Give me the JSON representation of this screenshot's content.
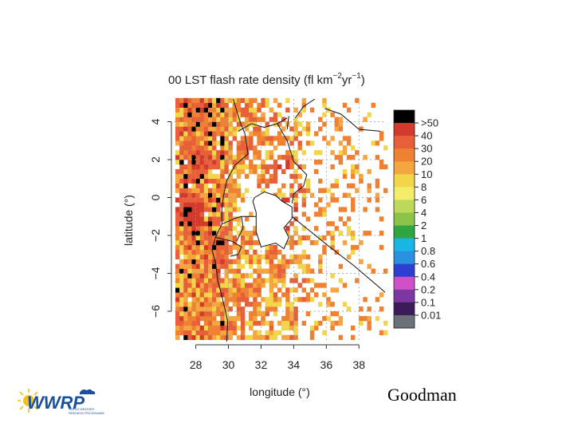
{
  "slide": {
    "author": "Goodman"
  },
  "logo": {
    "name": "WWRP",
    "tagline_1": "WORLD WEATHER",
    "tagline_2": "RESEARCH PROGRAMME"
  },
  "chart_data": {
    "type": "heatmap",
    "title_main": "00 LST flash rate density (fl km",
    "title_sup1": "−2",
    "title_mid": "yr",
    "title_sup2": "−1",
    "title_end": ")",
    "xlabel": "longitude (°)",
    "ylabel": "latitude (°)",
    "xlim": [
      26.7,
      39.6
    ],
    "ylim": [
      -7.6,
      5.2
    ],
    "xticks": [
      28,
      30,
      32,
      34,
      36,
      38
    ],
    "yticks": [
      4,
      2,
      0,
      -2,
      -4,
      -6
    ],
    "xtick_labels": [
      "28",
      "30",
      "32",
      "34",
      "36",
      "38"
    ],
    "ytick_labels": [
      "4",
      "2",
      "0",
      "−2",
      "−4",
      "−6"
    ],
    "grid": "dashed gray at ticks",
    "legend": {
      "placement": "right",
      "labels": [
        ">50",
        "40",
        "30",
        "20",
        "10",
        "8",
        "6",
        "4",
        "2",
        "1",
        "0.8",
        "0.6",
        "0.4",
        "0.2",
        "0.1",
        "0.01"
      ],
      "colors": [
        "#000000",
        "#d33a2c",
        "#e8603a",
        "#ef8232",
        "#f5a640",
        "#f2d64a",
        "#f3ee6a",
        "#bcd95a",
        "#8cc44a",
        "#2fa640",
        "#19b6e6",
        "#2a90e0",
        "#2c3fd0",
        "#d050c8",
        "#7a38a0",
        "#3c1c58",
        "#6a7278"
      ]
    },
    "grid_spec": {
      "cell_deg": 0.25,
      "lon_start": 26.75,
      "lat_start": -7.5,
      "ncol": 52,
      "nrow": 51,
      "cell_colors": [
        "#000000",
        "#d33a2c",
        "#e8603a",
        "#ef8232",
        "#f5a640",
        "#f2d64a",
        "#bcd95a",
        "#8cc44a"
      ]
    },
    "hotspots": [
      {
        "lon": 27.6,
        "lat": -0.8,
        "level": 7
      },
      {
        "lon": 28.0,
        "lat": 1.8,
        "level": 6
      },
      {
        "lon": 28.0,
        "lat": 4.3,
        "level": 5
      },
      {
        "lon": 31.2,
        "lat": 2.6,
        "level": 5
      },
      {
        "lon": 33.1,
        "lat": 1.5,
        "level": 6
      },
      {
        "lon": 33.3,
        "lat": -0.9,
        "level": 7
      },
      {
        "lon": 32.6,
        "lat": -1.4,
        "level": 5
      },
      {
        "lon": 29.4,
        "lat": -3.0,
        "level": 5
      },
      {
        "lon": 30.8,
        "lat": -5.8,
        "level": 5
      },
      {
        "lon": 28.8,
        "lat": -6.6,
        "level": 4
      }
    ],
    "lake_victoria": [
      [
        31.6,
        0.0
      ],
      [
        32.2,
        0.3
      ],
      [
        32.9,
        0.1
      ],
      [
        33.3,
        -0.2
      ],
      [
        33.9,
        -0.5
      ],
      [
        33.9,
        -1.1
      ],
      [
        33.4,
        -1.6
      ],
      [
        33.7,
        -2.1
      ],
      [
        33.4,
        -2.7
      ],
      [
        32.9,
        -2.4
      ],
      [
        32.0,
        -2.6
      ],
      [
        31.7,
        -1.8
      ],
      [
        31.7,
        -0.8
      ],
      [
        31.5,
        -0.2
      ]
    ],
    "borders": [
      [
        [
          29.9,
          -7.6
        ],
        [
          29.95,
          -6.5
        ],
        [
          29.6,
          -5.2
        ],
        [
          29.35,
          -4.4
        ],
        [
          29.2,
          -3.4
        ],
        [
          29.0,
          -2.8
        ],
        [
          29.2,
          -2.1
        ],
        [
          29.6,
          -1.4
        ],
        [
          29.6,
          -0.6
        ],
        [
          29.7,
          0.1
        ],
        [
          29.9,
          0.9
        ],
        [
          30.4,
          1.7
        ],
        [
          31.2,
          2.3
        ],
        [
          31.0,
          3.4
        ],
        [
          30.8,
          3.8
        ],
        [
          30.6,
          4.3
        ],
        [
          30.3,
          5.2
        ]
      ],
      [
        [
          30.6,
          3.5
        ],
        [
          31.4,
          3.9
        ],
        [
          32.2,
          3.7
        ],
        [
          33.0,
          3.9
        ],
        [
          33.6,
          4.2
        ]
      ],
      [
        [
          33.0,
          3.9
        ],
        [
          33.6,
          3.0
        ],
        [
          34.0,
          1.9
        ],
        [
          34.8,
          1.2
        ],
        [
          34.6,
          0.6
        ],
        [
          34.0,
          0.2
        ],
        [
          33.9,
          -0.3
        ]
      ],
      [
        [
          29.6,
          -1.4
        ],
        [
          30.4,
          -1.1
        ],
        [
          30.8,
          -1.0
        ],
        [
          31.7,
          -1.0
        ]
      ],
      [
        [
          29.2,
          -2.1
        ],
        [
          30.2,
          -2.3
        ],
        [
          30.8,
          -2.6
        ],
        [
          30.6,
          -3.0
        ],
        [
          30.1,
          -3.1
        ]
      ],
      [
        [
          30.8,
          -1.0
        ],
        [
          30.9,
          -1.6
        ],
        [
          30.5,
          -2.3
        ]
      ],
      [
        [
          33.9,
          -1.0
        ],
        [
          36.2,
          -2.6
        ],
        [
          37.7,
          -3.6
        ],
        [
          39.2,
          -4.7
        ],
        [
          39.6,
          -5.0
        ]
      ],
      [
        [
          34.1,
          4.2
        ],
        [
          34.6,
          4.8
        ],
        [
          35.3,
          5.2
        ]
      ],
      [
        [
          35.9,
          4.7
        ],
        [
          36.9,
          4.4
        ],
        [
          38.0,
          3.6
        ],
        [
          39.3,
          3.5
        ]
      ],
      [
        [
          33.6,
          3.6
        ],
        [
          33.7,
          4.3
        ]
      ]
    ]
  }
}
